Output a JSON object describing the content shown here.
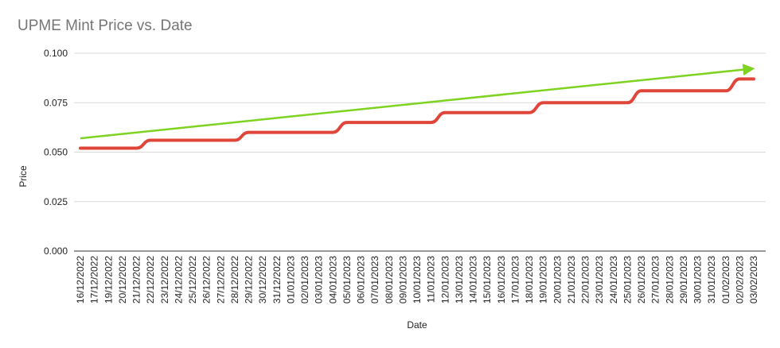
{
  "chart_data": {
    "type": "line",
    "title": "UPME Mint Price vs. Date",
    "xlabel": "Date",
    "ylabel": "Price",
    "ylim": [
      0,
      0.1
    ],
    "yticks": [
      "0.000",
      "0.025",
      "0.050",
      "0.075",
      "0.100"
    ],
    "grid": true,
    "categories": [
      "16/12/2022",
      "17/12/2022",
      "19/12/2022",
      "20/12/2022",
      "21/12/2022",
      "22/12/2022",
      "23/12/2022",
      "24/12/2022",
      "25/12/2022",
      "26/12/2022",
      "27/12/2022",
      "28/12/2022",
      "29/12/2022",
      "30/12/2022",
      "31/12/2022",
      "01/01/2023",
      "02/01/2023",
      "03/01/2023",
      "04/01/2023",
      "05/01/2023",
      "06/01/2023",
      "07/01/2023",
      "08/01/2023",
      "09/01/2023",
      "10/01/2023",
      "11/01/2023",
      "12/01/2023",
      "13/01/2023",
      "14/01/2023",
      "15/01/2023",
      "16/01/2023",
      "17/01/2023",
      "18/01/2023",
      "19/01/2023",
      "20/01/2023",
      "21/01/2023",
      "22/01/2023",
      "23/01/2023",
      "24/01/2023",
      "25/01/2023",
      "26/01/2023",
      "27/01/2023",
      "28/01/2023",
      "29/01/2023",
      "30/01/2023",
      "31/01/2023",
      "01/02/2023",
      "02/02/2023",
      "03/02/2023"
    ],
    "series": [
      {
        "color": "#e0453a",
        "values": [
          0.052,
          0.052,
          0.052,
          0.052,
          0.052,
          0.056,
          0.056,
          0.056,
          0.056,
          0.056,
          0.056,
          0.056,
          0.06,
          0.06,
          0.06,
          0.06,
          0.06,
          0.06,
          0.06,
          0.065,
          0.065,
          0.065,
          0.065,
          0.065,
          0.065,
          0.065,
          0.07,
          0.07,
          0.07,
          0.07,
          0.07,
          0.07,
          0.07,
          0.075,
          0.075,
          0.075,
          0.075,
          0.075,
          0.075,
          0.075,
          0.081,
          0.081,
          0.081,
          0.081,
          0.081,
          0.081,
          0.081,
          0.087,
          0.087
        ]
      }
    ],
    "annotations": [
      {
        "type": "trend-arrow",
        "color": "#7ed321",
        "start": {
          "x": "16/12/2022",
          "y": 0.057
        },
        "end": {
          "x": "03/02/2023",
          "y": 0.092
        }
      }
    ]
  }
}
